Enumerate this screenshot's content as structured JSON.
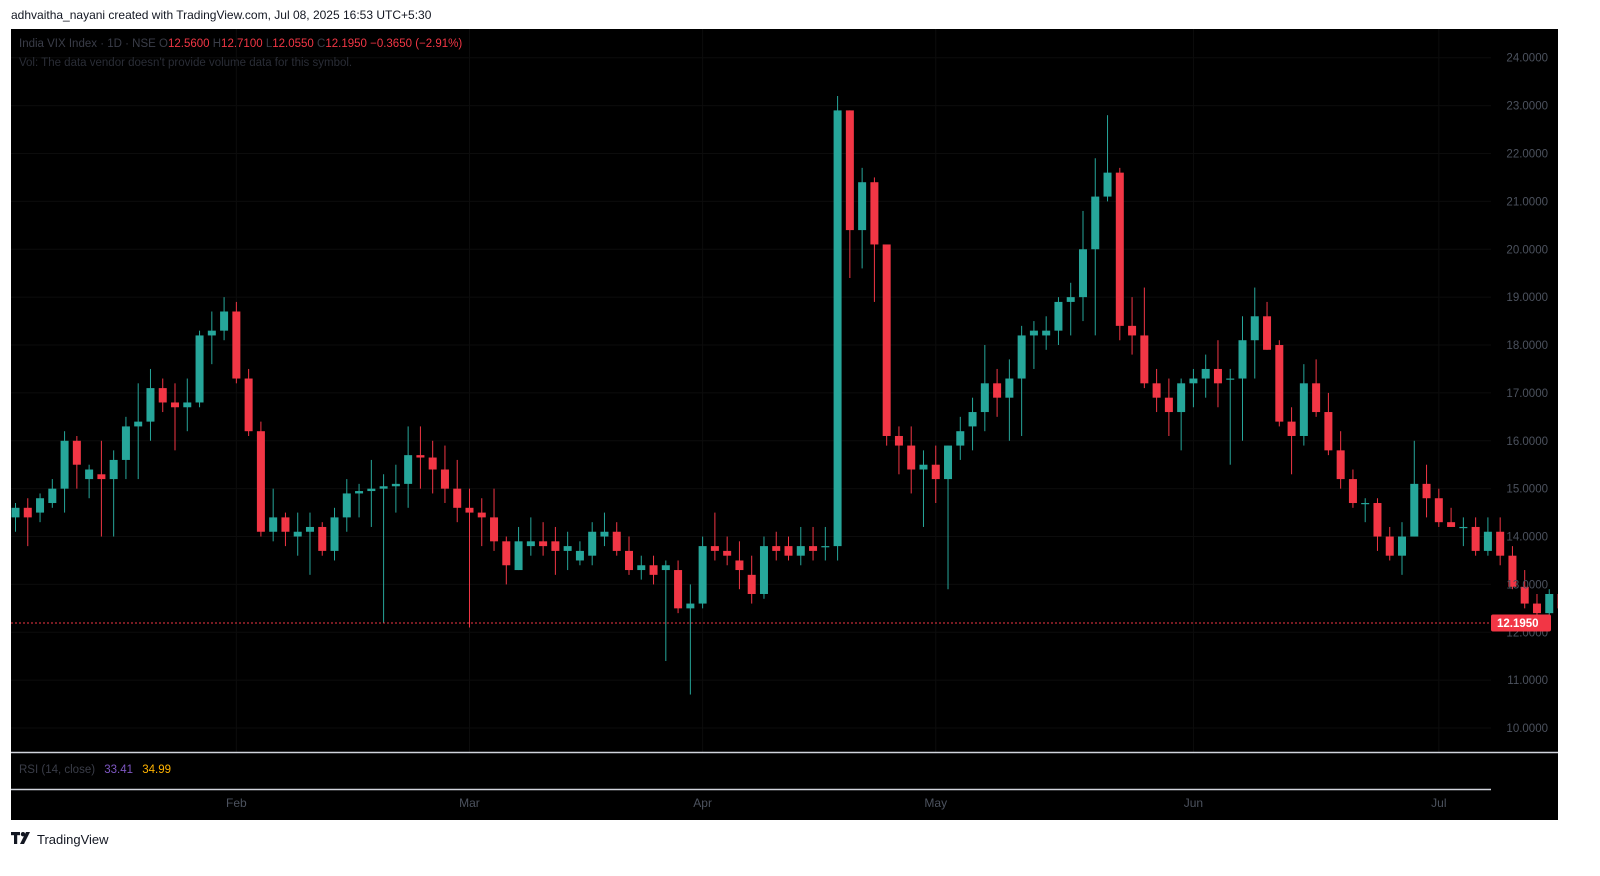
{
  "header": {
    "attribution": "adhvaitha_nayani created with TradingView.com, Jul 08, 2025 16:53 UTC+5:30"
  },
  "legend": {
    "symbol": "India VIX Index · 1D · NSE",
    "o_label": "O",
    "o_value": "12.5600",
    "h_label": "H",
    "h_value": "12.7100",
    "l_label": "L",
    "l_value": "12.0550",
    "c_label": "C",
    "c_value": "12.1950",
    "change": "−0.3650 (−2.91%)",
    "volume_note": "Vol: The data vendor doesn't provide volume data for this symbol."
  },
  "rsi": {
    "label": "RSI (14, close)",
    "value1": "33.41",
    "value2": "34.99"
  },
  "price_label": "12.1950",
  "footer": {
    "brand": "TradingView",
    "logo_icon": "tradingview-logo-icon"
  },
  "colors": {
    "up": "#26a69a",
    "down": "#f23645",
    "background": "#000000",
    "axis_text": "#4c525e",
    "price_line": "#f23645"
  },
  "chart_data": {
    "type": "candlestick",
    "title": "India VIX Index · 1D · NSE",
    "y_ticks": [
      "10.0000",
      "11.0000",
      "12.0000",
      "13.0000",
      "14.0000",
      "15.0000",
      "16.0000",
      "17.0000",
      "18.0000",
      "19.0000",
      "20.0000",
      "21.0000",
      "22.0000",
      "23.0000",
      "24.0000"
    ],
    "ylim": [
      9.5,
      24.6
    ],
    "x_ticks": [
      {
        "label": "Feb",
        "index": 18
      },
      {
        "label": "Mar",
        "index": 37
      },
      {
        "label": "Apr",
        "index": 56
      },
      {
        "label": "May",
        "index": 75
      },
      {
        "label": "Jun",
        "index": 96
      },
      {
        "label": "Jul",
        "index": 116
      }
    ],
    "last_close": 12.195,
    "candles": [
      [
        14.4,
        14.7,
        14.1,
        14.6
      ],
      [
        14.6,
        14.8,
        13.8,
        14.4
      ],
      [
        14.5,
        14.9,
        14.3,
        14.8
      ],
      [
        14.7,
        15.2,
        14.6,
        15.0
      ],
      [
        15.0,
        16.2,
        14.5,
        16.0
      ],
      [
        16.0,
        16.1,
        15.0,
        15.5
      ],
      [
        15.2,
        15.5,
        14.8,
        15.4
      ],
      [
        15.3,
        16.0,
        14.0,
        15.2
      ],
      [
        15.2,
        15.8,
        14.0,
        15.6
      ],
      [
        15.6,
        16.5,
        15.2,
        16.3
      ],
      [
        16.3,
        17.2,
        15.2,
        16.4
      ],
      [
        16.4,
        17.5,
        16.0,
        17.1
      ],
      [
        17.1,
        17.3,
        16.6,
        16.8
      ],
      [
        16.8,
        17.2,
        15.8,
        16.7
      ],
      [
        16.7,
        17.3,
        16.2,
        16.8
      ],
      [
        16.8,
        18.3,
        16.7,
        18.2
      ],
      [
        18.2,
        18.7,
        17.6,
        18.3
      ],
      [
        18.3,
        19.0,
        18.1,
        18.7
      ],
      [
        18.7,
        18.9,
        17.2,
        17.3
      ],
      [
        17.3,
        17.5,
        16.1,
        16.2
      ],
      [
        16.2,
        16.4,
        14.0,
        14.1
      ],
      [
        14.1,
        15.0,
        13.9,
        14.4
      ],
      [
        14.4,
        14.5,
        13.8,
        14.1
      ],
      [
        14.0,
        14.5,
        13.6,
        14.1
      ],
      [
        14.1,
        14.5,
        13.2,
        14.2
      ],
      [
        14.2,
        14.3,
        13.6,
        13.7
      ],
      [
        13.7,
        14.6,
        13.5,
        14.4
      ],
      [
        14.4,
        15.2,
        14.1,
        14.9
      ],
      [
        14.9,
        15.1,
        14.4,
        14.95
      ],
      [
        14.95,
        15.6,
        14.2,
        15.0
      ],
      [
        15.0,
        15.3,
        12.2,
        15.05
      ],
      [
        15.05,
        15.5,
        14.5,
        15.1
      ],
      [
        15.1,
        16.3,
        14.6,
        15.7
      ],
      [
        15.7,
        16.3,
        15.0,
        15.65
      ],
      [
        15.65,
        16.0,
        14.9,
        15.4
      ],
      [
        15.4,
        15.9,
        14.7,
        15.0
      ],
      [
        15.0,
        15.6,
        14.3,
        14.6
      ],
      [
        14.6,
        15.0,
        12.1,
        14.5
      ],
      [
        14.5,
        14.8,
        13.8,
        14.4
      ],
      [
        14.4,
        15.0,
        13.7,
        13.9
      ],
      [
        13.9,
        14.0,
        13.0,
        13.4
      ],
      [
        13.3,
        14.2,
        13.3,
        13.9
      ],
      [
        13.8,
        14.4,
        13.6,
        13.9
      ],
      [
        13.9,
        14.3,
        13.6,
        13.8
      ],
      [
        13.9,
        14.2,
        13.2,
        13.7
      ],
      [
        13.7,
        14.1,
        13.3,
        13.8
      ],
      [
        13.5,
        13.9,
        13.4,
        13.7
      ],
      [
        13.6,
        14.3,
        13.4,
        14.1
      ],
      [
        14.0,
        14.5,
        13.8,
        14.1
      ],
      [
        14.1,
        14.3,
        13.6,
        13.7
      ],
      [
        13.7,
        14.0,
        13.2,
        13.3
      ],
      [
        13.3,
        13.6,
        13.1,
        13.4
      ],
      [
        13.4,
        13.6,
        13.0,
        13.2
      ],
      [
        13.3,
        13.5,
        11.4,
        13.4
      ],
      [
        13.3,
        13.5,
        12.4,
        12.5
      ],
      [
        12.5,
        13.0,
        10.7,
        12.6
      ],
      [
        12.6,
        14.0,
        12.5,
        13.8
      ],
      [
        13.8,
        14.5,
        13.5,
        13.7
      ],
      [
        13.7,
        14.0,
        13.4,
        13.6
      ],
      [
        13.5,
        13.9,
        12.9,
        13.3
      ],
      [
        13.2,
        13.6,
        12.6,
        12.8
      ],
      [
        12.8,
        14.0,
        12.7,
        13.8
      ],
      [
        13.8,
        14.1,
        13.5,
        13.7
      ],
      [
        13.8,
        14.0,
        13.5,
        13.6
      ],
      [
        13.6,
        14.2,
        13.4,
        13.8
      ],
      [
        13.8,
        14.2,
        13.5,
        13.7
      ],
      [
        13.8,
        14.2,
        13.5,
        13.8
      ],
      [
        13.8,
        23.2,
        13.5,
        22.9
      ],
      [
        22.9,
        22.9,
        19.4,
        20.4
      ],
      [
        20.4,
        21.7,
        19.6,
        21.4
      ],
      [
        21.4,
        21.5,
        18.9,
        20.1
      ],
      [
        20.1,
        20.1,
        15.9,
        16.1
      ],
      [
        16.1,
        16.3,
        15.3,
        15.9
      ],
      [
        15.9,
        16.3,
        14.9,
        15.4
      ],
      [
        15.4,
        15.8,
        14.2,
        15.5
      ],
      [
        15.5,
        15.9,
        14.7,
        15.2
      ],
      [
        15.2,
        15.9,
        12.9,
        15.9
      ],
      [
        15.9,
        16.5,
        15.6,
        16.2
      ],
      [
        16.3,
        16.9,
        15.8,
        16.6
      ],
      [
        16.6,
        18.0,
        16.2,
        17.2
      ],
      [
        17.2,
        17.5,
        16.5,
        16.9
      ],
      [
        16.9,
        17.7,
        16.0,
        17.3
      ],
      [
        17.3,
        18.4,
        16.1,
        18.2
      ],
      [
        18.2,
        18.5,
        17.5,
        18.3
      ],
      [
        18.2,
        18.6,
        17.9,
        18.3
      ],
      [
        18.3,
        19.0,
        18.0,
        18.9
      ],
      [
        18.9,
        19.3,
        18.2,
        19.0
      ],
      [
        19.0,
        20.8,
        18.5,
        20.0
      ],
      [
        20.0,
        21.9,
        18.2,
        21.1
      ],
      [
        21.1,
        22.8,
        21.0,
        21.6
      ],
      [
        21.6,
        21.7,
        18.1,
        18.4
      ],
      [
        18.4,
        19.0,
        17.8,
        18.2
      ],
      [
        18.2,
        19.2,
        17.1,
        17.2
      ],
      [
        17.2,
        17.5,
        16.6,
        16.9
      ],
      [
        16.9,
        17.3,
        16.1,
        16.6
      ],
      [
        16.6,
        17.3,
        15.8,
        17.2
      ],
      [
        17.2,
        17.5,
        16.7,
        17.3
      ],
      [
        17.3,
        17.8,
        16.9,
        17.5
      ],
      [
        17.5,
        18.1,
        16.7,
        17.2
      ],
      [
        17.3,
        17.5,
        15.5,
        17.3
      ],
      [
        17.3,
        18.6,
        16.0,
        18.1
      ],
      [
        18.1,
        19.2,
        17.3,
        18.6
      ],
      [
        18.6,
        18.9,
        17.9,
        17.9
      ],
      [
        18.0,
        18.1,
        16.3,
        16.4
      ],
      [
        16.4,
        16.7,
        15.3,
        16.1
      ],
      [
        16.1,
        17.6,
        15.9,
        17.2
      ],
      [
        17.2,
        17.7,
        16.5,
        16.6
      ],
      [
        16.6,
        17.0,
        15.7,
        15.8
      ],
      [
        15.8,
        16.2,
        15.0,
        15.2
      ],
      [
        15.2,
        15.4,
        14.6,
        14.7
      ],
      [
        14.7,
        14.8,
        14.3,
        14.7
      ],
      [
        14.7,
        14.8,
        13.7,
        14.0
      ],
      [
        14.0,
        14.2,
        13.5,
        13.6
      ],
      [
        13.6,
        14.3,
        13.2,
        14.0
      ],
      [
        14.0,
        16.0,
        14.0,
        15.1
      ],
      [
        15.1,
        15.5,
        14.4,
        14.8
      ],
      [
        14.8,
        15.0,
        14.2,
        14.3
      ],
      [
        14.3,
        14.6,
        14.2,
        14.2
      ],
      [
        14.2,
        14.4,
        13.8,
        14.2
      ],
      [
        14.2,
        14.4,
        13.6,
        13.7
      ],
      [
        13.7,
        14.4,
        13.6,
        14.1
      ],
      [
        14.1,
        14.4,
        13.4,
        13.6
      ],
      [
        13.6,
        13.8,
        12.9,
        12.95
      ],
      [
        12.95,
        13.3,
        12.5,
        12.6
      ],
      [
        12.6,
        12.8,
        12.3,
        12.4
      ],
      [
        12.4,
        12.9,
        12.3,
        12.8
      ],
      [
        12.8,
        12.9,
        12.4,
        12.5
      ],
      [
        12.5,
        12.6,
        12.3,
        12.4
      ],
      [
        12.4,
        12.6,
        12.2,
        12.3
      ],
      [
        12.3,
        12.7,
        12.1,
        12.2
      ],
      [
        12.3,
        12.7,
        11.9,
        12.55
      ],
      [
        12.56,
        12.71,
        12.055,
        12.195
      ]
    ]
  }
}
